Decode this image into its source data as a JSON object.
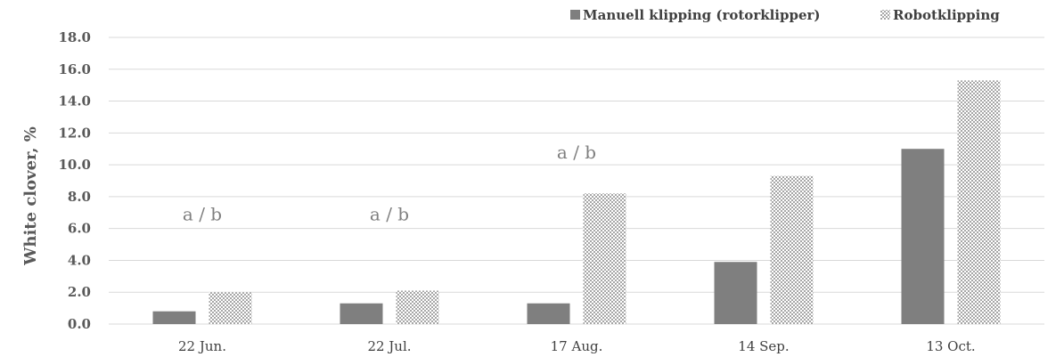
{
  "chart_data": {
    "type": "bar",
    "categories": [
      "22 Jun.",
      "22 Jul.",
      "17 Aug.",
      "14 Sep.",
      "13 Oct."
    ],
    "series": [
      {
        "name": "Manuell klipping (rotorklipper)",
        "values": [
          0.8,
          1.3,
          1.3,
          3.9,
          11.0
        ],
        "color": "#7f7f7f",
        "pattern": "solid"
      },
      {
        "name": "Robotklipping",
        "values": [
          2.0,
          2.1,
          8.2,
          9.3,
          15.3
        ],
        "color": "#bfbfbf",
        "pattern": "checkered"
      }
    ],
    "ylabel": "White clover, %",
    "xlabel": "",
    "ylim": [
      0,
      18
    ],
    "y_ticks": [
      "0.0",
      "2.0",
      "4.0",
      "6.0",
      "8.0",
      "10.0",
      "12.0",
      "14.0",
      "16.0",
      "18.0"
    ],
    "grid": true,
    "legend_position": "top-right",
    "annotations": [
      {
        "category": "22 Jun.",
        "text": "a / b",
        "value": 6.5
      },
      {
        "category": "22 Jul.",
        "text": "a / b",
        "value": 6.5
      },
      {
        "category": "17 Aug.",
        "text": "a / b",
        "value": 10.4
      }
    ]
  }
}
